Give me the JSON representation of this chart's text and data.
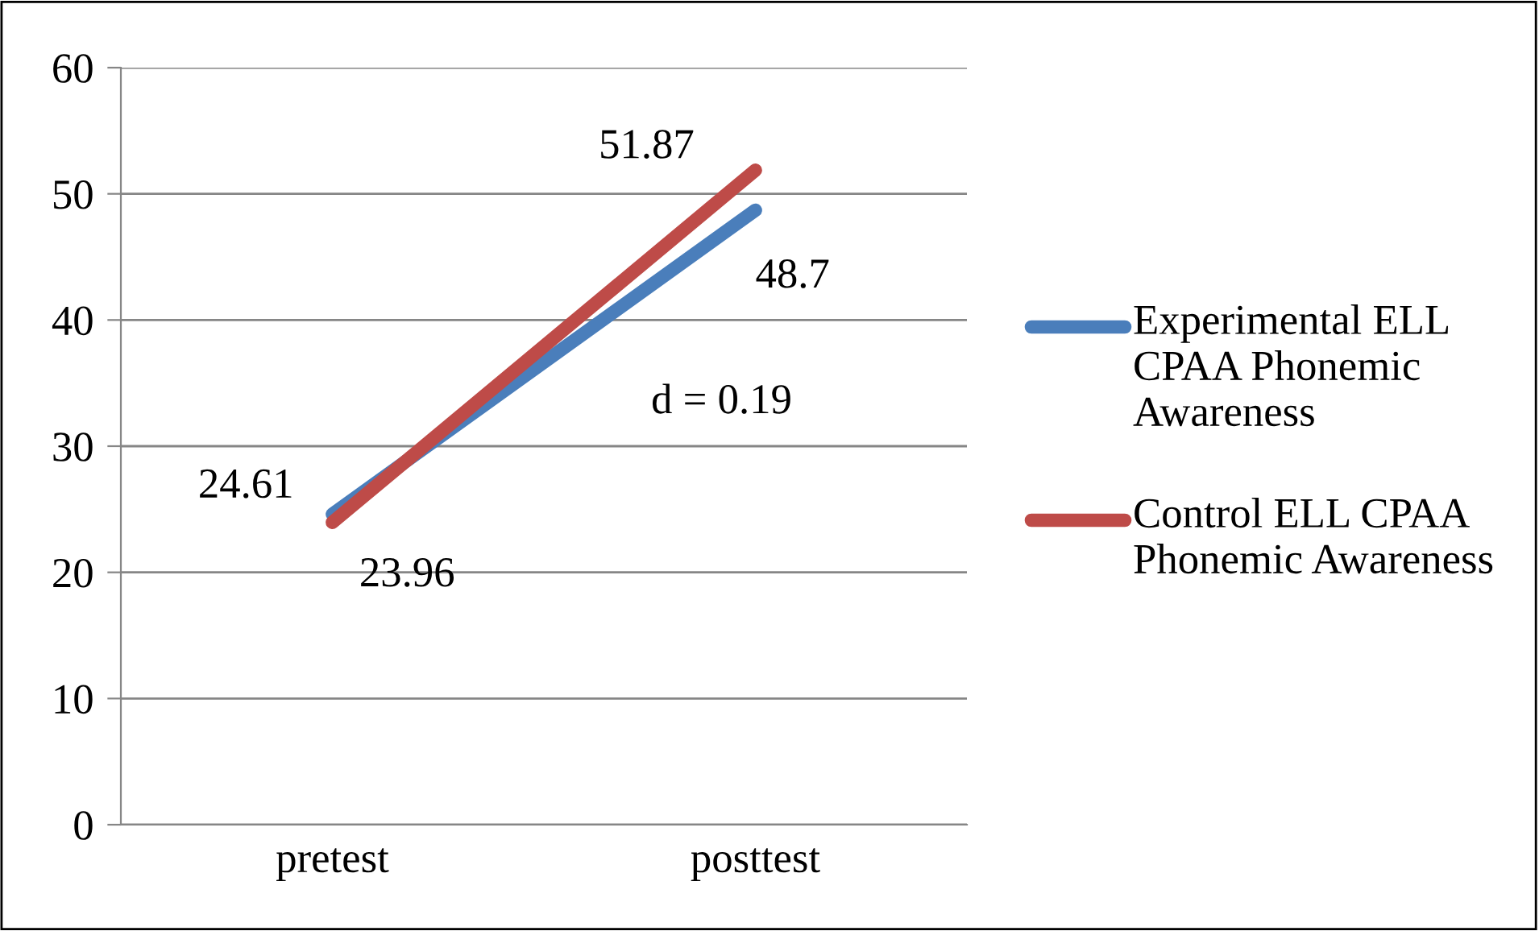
{
  "chart_data": {
    "type": "line",
    "categories": [
      "pretest",
      "posttest"
    ],
    "series": [
      {
        "name": "Experimental ELL CPAA Phonemic Awareness",
        "color": "#4a7ebb",
        "values": [
          24.61,
          48.7
        ]
      },
      {
        "name": "Control ELL CPAA Phonemic Awareness",
        "color": "#be4b48",
        "values": [
          23.96,
          51.87
        ]
      }
    ],
    "ylim": [
      0,
      60
    ],
    "yticks": [
      0,
      10,
      20,
      30,
      40,
      50,
      60
    ],
    "grid": "y",
    "legend": "right",
    "marker": "none",
    "line_style": "solid",
    "data_labels": true,
    "annotations": [
      "d = 0.19"
    ]
  }
}
